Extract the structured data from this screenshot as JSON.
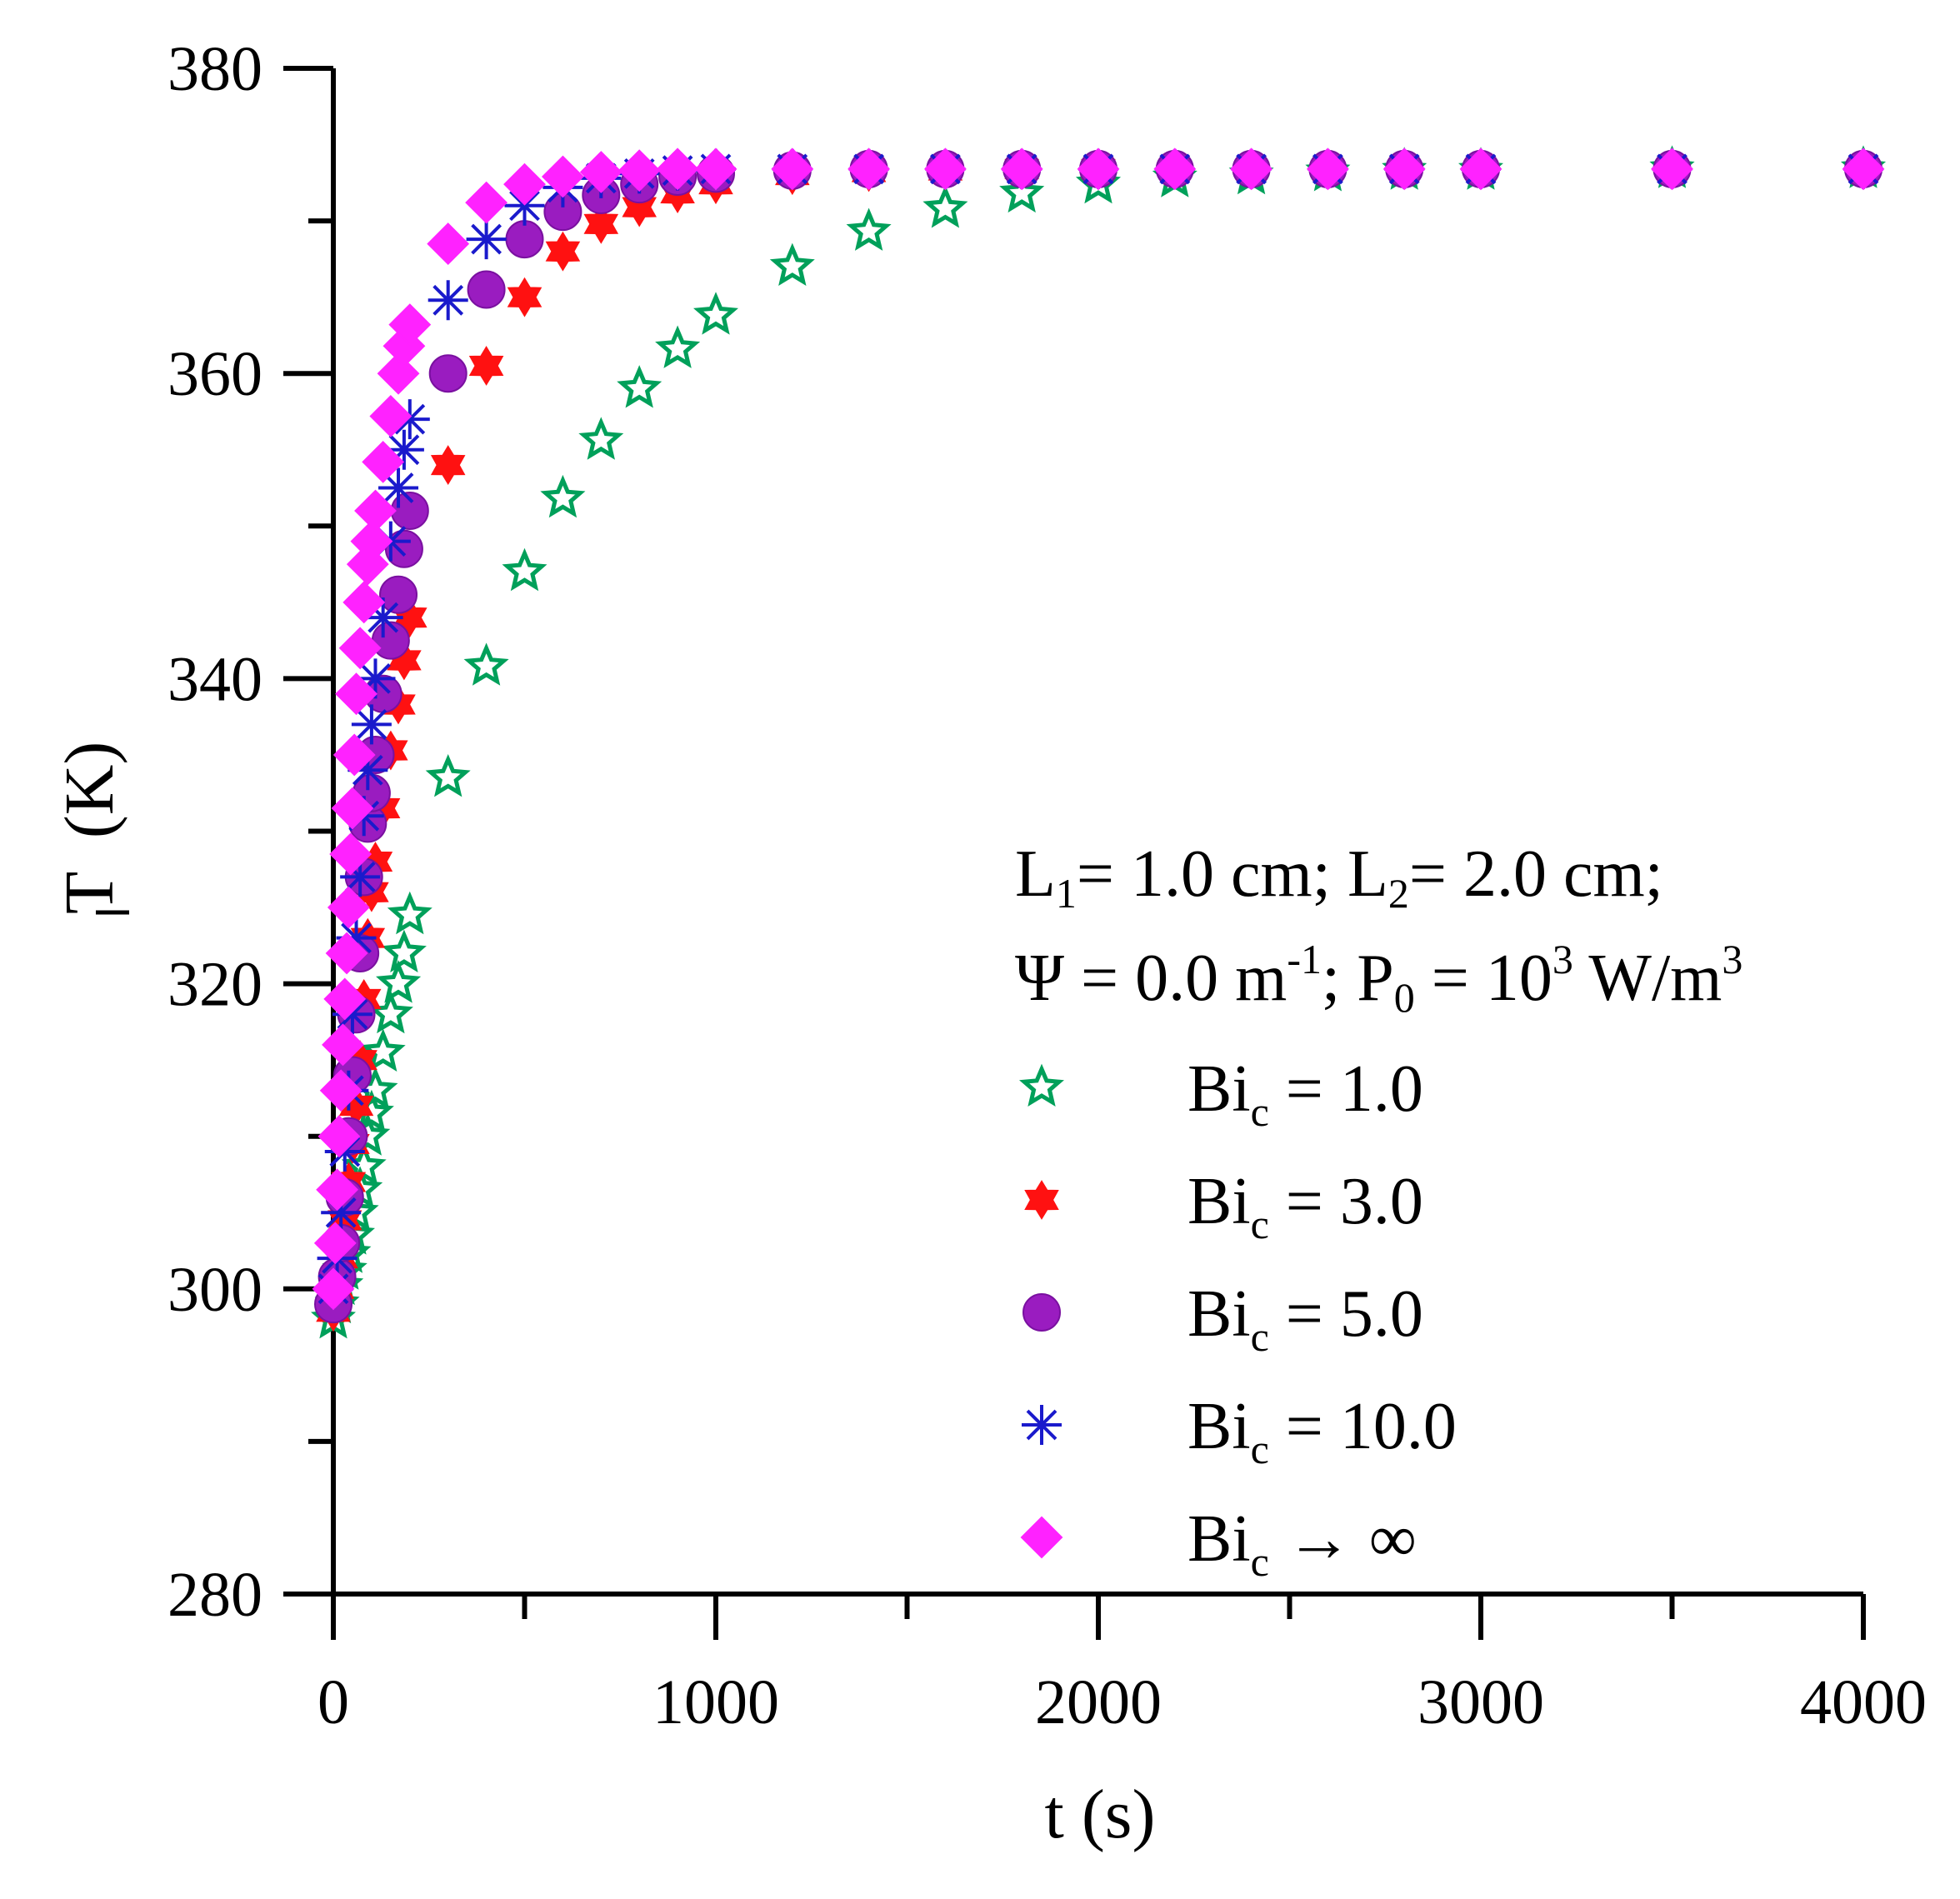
{
  "chart_data": {
    "type": "scatter",
    "title": "",
    "xlabel": "t (s)",
    "ylabel": "T̅ (K)",
    "ylabel_symbol": "T",
    "ylabel_unit": "(K)",
    "xlim": [
      0,
      4000
    ],
    "ylim": [
      280,
      380
    ],
    "x_ticks": [
      0,
      1000,
      2000,
      3000,
      4000
    ],
    "x_tick_labels": [
      "0",
      "1000",
      "2000",
      "3000",
      "4000"
    ],
    "y_ticks": [
      280,
      300,
      320,
      340,
      360,
      380
    ],
    "y_tick_labels": [
      "280",
      "300",
      "320",
      "340",
      "360",
      "380"
    ],
    "grid": false,
    "legend_position": "right",
    "annotation": {
      "line1": {
        "pre": "L",
        "sub1": "1",
        "mid": "= 1.0 cm; L",
        "sub2": "2",
        "post": "= 2.0 cm;"
      },
      "line2": {
        "pre": "Ψ = 0.0 m",
        "sup1": "-1",
        "mid": "; P",
        "sub1": "0",
        "mid2": " = 10",
        "sup2": "3",
        "post": " W/m",
        "sup3": "3"
      }
    },
    "series": [
      {
        "name": "Bi_c = 1.0",
        "label_main": "Bi",
        "label_sub": "c",
        "label_rest": " = 1.0",
        "marker": "star-open",
        "color": "#00a05a",
        "points": [
          [
            0,
            298
          ],
          [
            10,
            299
          ],
          [
            20,
            300.2
          ],
          [
            30,
            301.2
          ],
          [
            40,
            302.3
          ],
          [
            50,
            303.5
          ],
          [
            60,
            305
          ],
          [
            70,
            306.5
          ],
          [
            80,
            308
          ],
          [
            90,
            310
          ],
          [
            100,
            311.5
          ],
          [
            110,
            313
          ],
          [
            130,
            315.5
          ],
          [
            150,
            318
          ],
          [
            170,
            320
          ],
          [
            185,
            322
          ],
          [
            200,
            324.5
          ],
          [
            300,
            333.5
          ],
          [
            400,
            340.8
          ],
          [
            500,
            347
          ],
          [
            600,
            351.8
          ],
          [
            700,
            355.6
          ],
          [
            800,
            359
          ],
          [
            900,
            361.6
          ],
          [
            1000,
            363.8
          ],
          [
            1200,
            367
          ],
          [
            1400,
            369.3
          ],
          [
            1600,
            370.8
          ],
          [
            1800,
            371.8
          ],
          [
            2000,
            372.4
          ],
          [
            2200,
            372.8
          ],
          [
            2400,
            373
          ],
          [
            2600,
            373.2
          ],
          [
            2800,
            373.3
          ],
          [
            3000,
            373.3
          ],
          [
            3500,
            373.4
          ],
          [
            4000,
            373.4
          ]
        ]
      },
      {
        "name": "Bi_c = 3.0",
        "label_main": "Bi",
        "label_sub": "c",
        "label_rest": " = 3.0",
        "marker": "star6",
        "color": "#ff1111",
        "points": [
          [
            0,
            298.5
          ],
          [
            10,
            300
          ],
          [
            20,
            302
          ],
          [
            30,
            304.5
          ],
          [
            40,
            307
          ],
          [
            50,
            309.5
          ],
          [
            60,
            312
          ],
          [
            70,
            315
          ],
          [
            80,
            319
          ],
          [
            90,
            323
          ],
          [
            100,
            326
          ],
          [
            110,
            328
          ],
          [
            130,
            331.5
          ],
          [
            150,
            335.3
          ],
          [
            170,
            338.3
          ],
          [
            185,
            341.2
          ],
          [
            200,
            344
          ],
          [
            300,
            354
          ],
          [
            400,
            360.5
          ],
          [
            500,
            365
          ],
          [
            600,
            368
          ],
          [
            700,
            369.8
          ],
          [
            800,
            370.9
          ],
          [
            900,
            371.8
          ],
          [
            1000,
            372.4
          ],
          [
            1200,
            373
          ],
          [
            1400,
            373.2
          ],
          [
            1600,
            373.3
          ],
          [
            1800,
            373.4
          ],
          [
            2000,
            373.4
          ]
        ]
      },
      {
        "name": "Bi_c = 5.0",
        "label_main": "Bi",
        "label_sub": "c",
        "label_rest": " = 5.0",
        "marker": "circle",
        "color": "#9a1cc0",
        "points": [
          [
            0,
            299
          ],
          [
            10,
            300.8
          ],
          [
            20,
            303
          ],
          [
            30,
            306
          ],
          [
            40,
            310
          ],
          [
            50,
            314
          ],
          [
            60,
            318
          ],
          [
            70,
            322
          ],
          [
            80,
            327
          ],
          [
            90,
            330.5
          ],
          [
            100,
            332.5
          ],
          [
            110,
            335
          ],
          [
            130,
            339
          ],
          [
            150,
            342.5
          ],
          [
            170,
            345.5
          ],
          [
            185,
            348.5
          ],
          [
            200,
            351
          ],
          [
            300,
            360
          ],
          [
            400,
            365.5
          ],
          [
            500,
            368.8
          ],
          [
            600,
            370.6
          ],
          [
            700,
            371.7
          ],
          [
            800,
            372.4
          ],
          [
            900,
            372.9
          ],
          [
            1000,
            373.1
          ],
          [
            1200,
            373.3
          ],
          [
            1400,
            373.4
          ],
          [
            1600,
            373.4
          ],
          [
            1800,
            373.4
          ],
          [
            2000,
            373.4
          ],
          [
            2200,
            373.4
          ],
          [
            2400,
            373.4
          ],
          [
            2600,
            373.4
          ],
          [
            2800,
            373.4
          ],
          [
            3000,
            373.4
          ],
          [
            3500,
            373.4
          ],
          [
            4000,
            373.4
          ]
        ]
      },
      {
        "name": "Bi_c = 10.0",
        "label_main": "Bi",
        "label_sub": "c",
        "label_rest": " = 10.0",
        "marker": "asterisk",
        "color": "#1a1acc",
        "points": [
          [
            0,
            300
          ],
          [
            10,
            302
          ],
          [
            20,
            305
          ],
          [
            30,
            309
          ],
          [
            40,
            313
          ],
          [
            50,
            318
          ],
          [
            60,
            323
          ],
          [
            70,
            327
          ],
          [
            80,
            331
          ],
          [
            90,
            334
          ],
          [
            100,
            337
          ],
          [
            110,
            340
          ],
          [
            130,
            344
          ],
          [
            150,
            349
          ],
          [
            170,
            352.5
          ],
          [
            185,
            355
          ],
          [
            200,
            357
          ],
          [
            300,
            364.8
          ],
          [
            400,
            368.8
          ],
          [
            500,
            371
          ],
          [
            600,
            372.2
          ],
          [
            700,
            372.8
          ],
          [
            800,
            373.1
          ],
          [
            900,
            373.3
          ],
          [
            1000,
            373.4
          ],
          [
            1200,
            373.4
          ],
          [
            1400,
            373.4
          ],
          [
            1600,
            373.4
          ],
          [
            1800,
            373.4
          ],
          [
            2000,
            373.4
          ],
          [
            2200,
            373.4
          ],
          [
            2400,
            373.4
          ],
          [
            2600,
            373.4
          ],
          [
            2800,
            373.4
          ],
          [
            3000,
            373.4
          ],
          [
            3500,
            373.4
          ],
          [
            4000,
            373.4
          ]
        ]
      },
      {
        "name": "Bi_c → ∞",
        "label_main": "Bi",
        "label_sub": "c",
        "label_rest": " → ∞",
        "marker": "diamond",
        "color": "#ff22ff",
        "points": [
          [
            0,
            300
          ],
          [
            5,
            303
          ],
          [
            10,
            306.5
          ],
          [
            15,
            310
          ],
          [
            20,
            313
          ],
          [
            25,
            316
          ],
          [
            30,
            319
          ],
          [
            35,
            322
          ],
          [
            40,
            325
          ],
          [
            45,
            328.5
          ],
          [
            50,
            331.5
          ],
          [
            55,
            335
          ],
          [
            60,
            339
          ],
          [
            70,
            342
          ],
          [
            80,
            345
          ],
          [
            90,
            347.5
          ],
          [
            100,
            349
          ],
          [
            110,
            351
          ],
          [
            130,
            354.2
          ],
          [
            150,
            357.2
          ],
          [
            170,
            360
          ],
          [
            185,
            361.8
          ],
          [
            200,
            363.2
          ],
          [
            300,
            368.5
          ],
          [
            400,
            371.2
          ],
          [
            500,
            372.4
          ],
          [
            600,
            372.9
          ],
          [
            700,
            373.2
          ],
          [
            800,
            373.3
          ],
          [
            900,
            373.4
          ],
          [
            1000,
            373.4
          ],
          [
            1200,
            373.4
          ],
          [
            1400,
            373.4
          ],
          [
            1600,
            373.4
          ],
          [
            1800,
            373.4
          ],
          [
            2000,
            373.4
          ],
          [
            2200,
            373.4
          ],
          [
            2400,
            373.4
          ],
          [
            2600,
            373.4
          ],
          [
            2800,
            373.4
          ],
          [
            3000,
            373.4
          ],
          [
            3500,
            373.4
          ],
          [
            4000,
            373.4
          ]
        ]
      }
    ]
  }
}
